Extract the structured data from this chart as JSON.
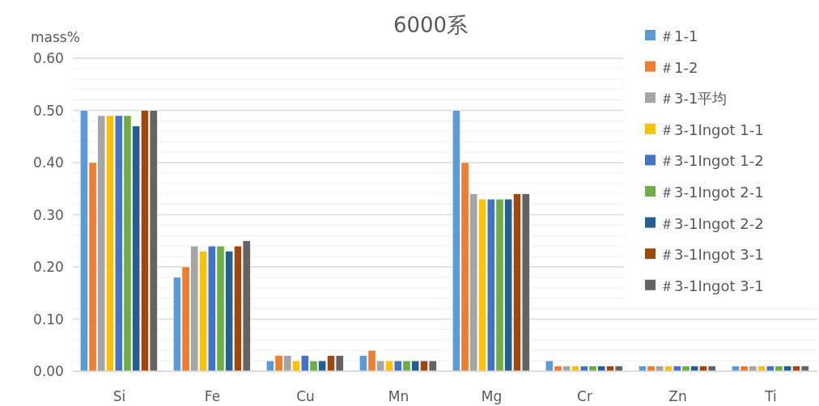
{
  "chart_data": {
    "type": "bar",
    "title": "6000系",
    "ylabel": "mass%",
    "categories": [
      "Si",
      "Fe",
      "Cu",
      "Mn",
      "Mg",
      "Cr",
      "Zn",
      "Ti"
    ],
    "ylim": [
      0,
      0.6
    ],
    "yticks": [
      {
        "value": 0,
        "label": "0.00"
      },
      {
        "value": 0.1,
        "label": "0.10"
      },
      {
        "value": 0.2,
        "label": "0.20"
      },
      {
        "value": 0.3,
        "label": "0.30"
      },
      {
        "value": 0.4,
        "label": "0.40"
      },
      {
        "value": 0.5,
        "label": "0.50"
      },
      {
        "value": 0.6,
        "label": "0.60"
      }
    ],
    "grid": "y",
    "legend": "top right",
    "series": [
      {
        "name": "＃1-1",
        "color": "#5b9bd5",
        "values": [
          0.5,
          0.18,
          0.02,
          0.03,
          0.5,
          0.02,
          0.01,
          0.01
        ]
      },
      {
        "name": "＃1-2",
        "color": "#ed7d31",
        "values": [
          0.4,
          0.2,
          0.03,
          0.04,
          0.4,
          0.01,
          0.01,
          0.01
        ]
      },
      {
        "name": "＃3-1平均",
        "color": "#a5a5a5",
        "values": [
          0.49,
          0.24,
          0.03,
          0.02,
          0.34,
          0.01,
          0.01,
          0.01
        ]
      },
      {
        "name": "＃3-1Ingot 1-1",
        "color": "#ffc000",
        "values": [
          0.49,
          0.23,
          0.02,
          0.02,
          0.33,
          0.01,
          0.01,
          0.01
        ]
      },
      {
        "name": "＃3-1Ingot 1-2",
        "color": "#4472c4",
        "values": [
          0.49,
          0.24,
          0.03,
          0.02,
          0.33,
          0.01,
          0.01,
          0.01
        ]
      },
      {
        "name": "＃3-1Ingot 2-1",
        "color": "#70ad47",
        "values": [
          0.49,
          0.24,
          0.02,
          0.02,
          0.33,
          0.01,
          0.01,
          0.01
        ]
      },
      {
        "name": "＃3-1Ingot 2-2",
        "color": "#255e91",
        "values": [
          0.47,
          0.23,
          0.02,
          0.02,
          0.33,
          0.01,
          0.01,
          0.01
        ]
      },
      {
        "name": "＃3-1Ingot 3-1",
        "color": "#9e480e",
        "values": [
          0.5,
          0.24,
          0.03,
          0.02,
          0.34,
          0.01,
          0.01,
          0.01
        ]
      },
      {
        "name": "＃3-1Ingot 3-1",
        "color": "#636363",
        "values": [
          0.5,
          0.25,
          0.03,
          0.02,
          0.34,
          0.01,
          0.01,
          0.01
        ]
      }
    ]
  }
}
